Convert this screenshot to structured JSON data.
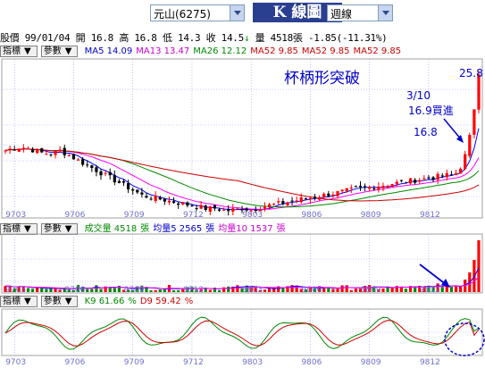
{
  "toolbar": {
    "stock_select": "元山(6275)",
    "title": "K 線圖",
    "period_select": "週線"
  },
  "quote": {
    "label": "股價",
    "date": "99/01/04",
    "open_label": "開",
    "open": "16.8",
    "high_label": "高",
    "high": "16.8",
    "low_label": "低",
    "low": "14.3",
    "close_label": "收",
    "close": "14.5",
    "arrow": "↓",
    "volume_label": "量",
    "volume": "4518張",
    "change": "-1.85(-11.31%)"
  },
  "panel_buttons": {
    "indicator": "指標",
    "params": "參數",
    "arrow": "▼"
  },
  "price_panel": {
    "legend": [
      {
        "text": "MA5 14.09",
        "color": "#0000cc"
      },
      {
        "text": "MA13 13.47",
        "color": "#cc00cc"
      },
      {
        "text": "MA26 12.12",
        "color": "#008800"
      },
      {
        "text": "MA52 9.85",
        "color": "#cc0000"
      },
      {
        "text": "MA52 9.85",
        "color": "#cc0000"
      },
      {
        "text": "MA52 9.85",
        "color": "#cc0000"
      }
    ],
    "annotation_title": "杯柄形突破",
    "annotation_high": "25.8",
    "annotation_date": "3/10",
    "annotation_buy": "16.9買進",
    "annotation_breakout": "16.8",
    "x_ticks": [
      "9703",
      "9706",
      "9709",
      "9712",
      "9803",
      "9806",
      "9809",
      "9812"
    ]
  },
  "volume_panel": {
    "legend": [
      {
        "text": "成交量 4518",
        "color": "#008800"
      },
      {
        "text": "張",
        "color": "#008800"
      },
      {
        "text": "均量5 2565",
        "color": "#0000cc"
      },
      {
        "text": "張",
        "color": "#0000cc"
      },
      {
        "text": "均量10 1537",
        "color": "#cc00cc"
      },
      {
        "text": "張",
        "color": "#cc00cc"
      }
    ],
    "x_ticks": [
      "9703",
      "9706",
      "9709",
      "9712",
      "9803",
      "9806",
      "9809",
      "9812"
    ]
  },
  "kd_panel": {
    "legend": [
      {
        "text": "K9 61.66",
        "color": "#008800"
      },
      {
        "text": "%",
        "color": "#008800"
      },
      {
        "text": "D9 59.42",
        "color": "#cc0000"
      },
      {
        "text": "%",
        "color": "#cc0000"
      }
    ],
    "x_ticks": [
      "9703",
      "9706",
      "9709",
      "9712",
      "9803",
      "9806",
      "9809",
      "9812"
    ]
  },
  "colors": {
    "up": "#ff0000",
    "down": "#000000",
    "ma5": "#0000ff",
    "ma13": "#ff00ff",
    "ma26": "#008800",
    "ma52": "#cc0000",
    "annotation": "#0000cc",
    "grid": "#9a9aff"
  }
}
